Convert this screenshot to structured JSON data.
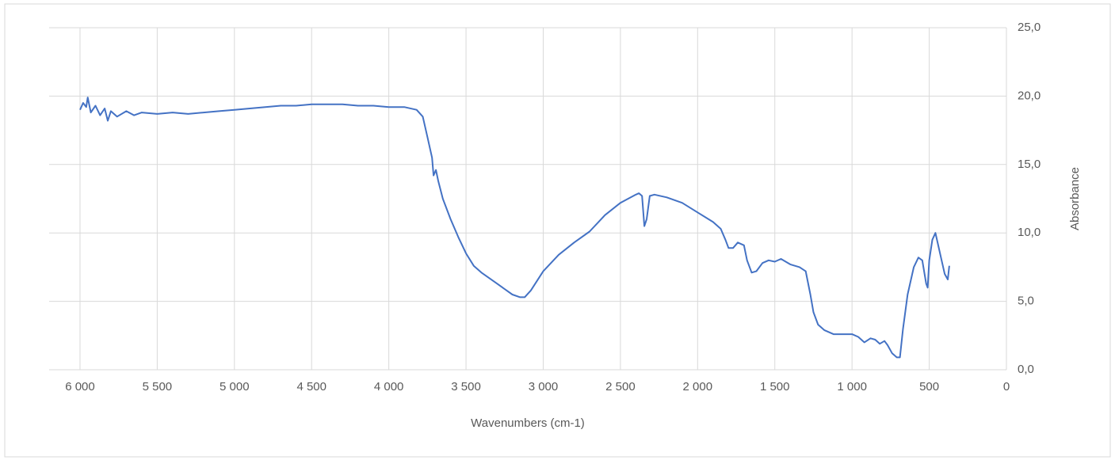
{
  "chart_data": {
    "type": "line",
    "x_label": "Wavenumbers (cm-1)",
    "y_label": "Absorbance",
    "color": "#4472c4",
    "grid": true,
    "y_axis_side": "right",
    "x_reversed": true,
    "xlim": [
      6200,
      0
    ],
    "ylim": [
      0,
      25
    ],
    "xticks": [
      {
        "value": 6000,
        "label": "6 000"
      },
      {
        "value": 5500,
        "label": "5 500"
      },
      {
        "value": 5000,
        "label": "5 000"
      },
      {
        "value": 4500,
        "label": "4 500"
      },
      {
        "value": 4000,
        "label": "4 000"
      },
      {
        "value": 3500,
        "label": "3 500"
      },
      {
        "value": 3000,
        "label": "3 000"
      },
      {
        "value": 2500,
        "label": "2 500"
      },
      {
        "value": 2000,
        "label": "2 000"
      },
      {
        "value": 1500,
        "label": "1 500"
      },
      {
        "value": 1000,
        "label": "1 000"
      },
      500,
      0
    ],
    "yticks": [
      {
        "value": 0,
        "label": "0,0"
      },
      {
        "value": 5,
        "label": "5,0"
      },
      {
        "value": 10,
        "label": "10,0"
      },
      {
        "value": 15,
        "label": "15,0"
      },
      {
        "value": 20,
        "label": "20,0"
      },
      {
        "value": 25,
        "label": "25,0"
      }
    ],
    "x": [
      6000,
      5980,
      5960,
      5950,
      5930,
      5900,
      5870,
      5840,
      5820,
      5800,
      5760,
      5700,
      5650,
      5600,
      5500,
      5400,
      5300,
      5200,
      5100,
      5000,
      4900,
      4800,
      4700,
      4600,
      4500,
      4400,
      4300,
      4200,
      4100,
      4000,
      3900,
      3820,
      3780,
      3750,
      3720,
      3710,
      3695,
      3680,
      3650,
      3600,
      3550,
      3500,
      3450,
      3400,
      3300,
      3200,
      3150,
      3120,
      3080,
      3000,
      2900,
      2800,
      2700,
      2600,
      2500,
      2400,
      2380,
      2360,
      2345,
      2330,
      2310,
      2280,
      2200,
      2100,
      2000,
      1900,
      1850,
      1820,
      1800,
      1770,
      1740,
      1700,
      1680,
      1650,
      1620,
      1580,
      1540,
      1500,
      1460,
      1400,
      1340,
      1300,
      1270,
      1250,
      1220,
      1180,
      1120,
      1050,
      1000,
      960,
      920,
      880,
      850,
      820,
      790,
      770,
      740,
      710,
      690,
      670,
      640,
      600,
      570,
      545,
      520,
      510,
      500,
      480,
      460,
      440,
      420,
      400,
      380,
      370
    ],
    "values": [
      19.0,
      19.5,
      19.2,
      19.9,
      18.8,
      19.3,
      18.6,
      19.1,
      18.2,
      18.9,
      18.5,
      18.9,
      18.6,
      18.8,
      18.7,
      18.8,
      18.7,
      18.8,
      18.9,
      19.0,
      19.1,
      19.2,
      19.3,
      19.3,
      19.4,
      19.4,
      19.4,
      19.3,
      19.3,
      19.2,
      19.2,
      19.0,
      18.5,
      17.0,
      15.5,
      14.2,
      14.6,
      13.8,
      12.5,
      11.0,
      9.7,
      8.5,
      7.6,
      7.1,
      6.3,
      5.5,
      5.3,
      5.3,
      5.8,
      7.2,
      8.4,
      9.3,
      10.1,
      11.3,
      12.2,
      12.8,
      12.9,
      12.7,
      10.5,
      11.0,
      12.7,
      12.8,
      12.6,
      12.2,
      11.5,
      10.8,
      10.3,
      9.5,
      8.9,
      8.9,
      9.3,
      9.1,
      8.0,
      7.1,
      7.2,
      7.8,
      8.0,
      7.9,
      8.1,
      7.7,
      7.5,
      7.2,
      5.5,
      4.2,
      3.3,
      2.9,
      2.6,
      2.6,
      2.6,
      2.4,
      2.0,
      2.3,
      2.2,
      1.9,
      2.1,
      1.8,
      1.2,
      0.9,
      0.9,
      3.0,
      5.5,
      7.5,
      8.2,
      8.0,
      6.3,
      6.0,
      8.0,
      9.5,
      10.0,
      9.0,
      8.0,
      7.0,
      6.6,
      7.6
    ]
  }
}
